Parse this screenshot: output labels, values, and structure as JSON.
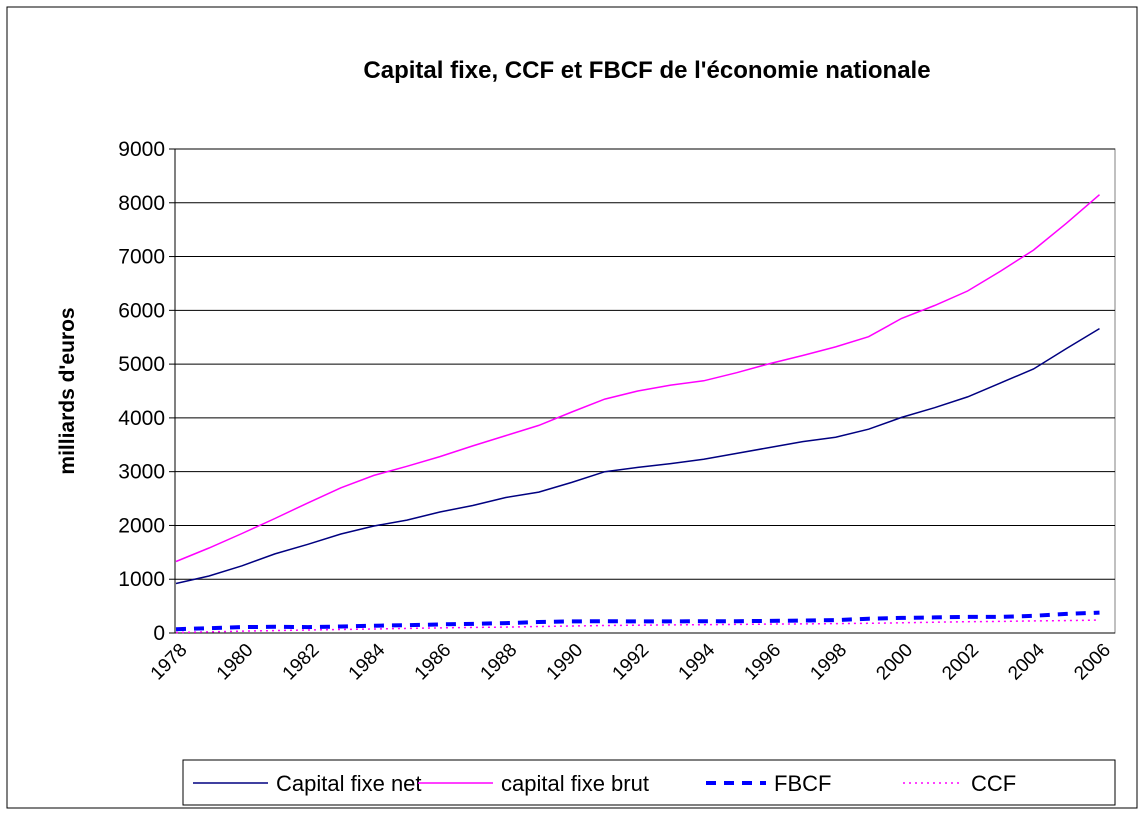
{
  "chart_data": {
    "type": "line",
    "title": "Capital fixe, CCF et FBCF de l'économie nationale",
    "y_label": "milliards d'euros",
    "categories": [
      "1978",
      null,
      "1980",
      null,
      "1982",
      null,
      "1984",
      null,
      "1986",
      null,
      "1988",
      null,
      "1990",
      null,
      "1992",
      null,
      "1994",
      null,
      "1996",
      null,
      "1998",
      null,
      "2000",
      null,
      "2002",
      null,
      "2004",
      null,
      "2006"
    ],
    "series": [
      {
        "name": "Capital fixe net",
        "color": "#000080",
        "style": "solid",
        "values": [
          920,
          1060,
          1250,
          1470,
          1650,
          1840,
          1990,
          2100,
          2250,
          2370,
          2520,
          2620,
          2800,
          3000,
          3080,
          3150,
          3230,
          3340,
          3450,
          3560,
          3640,
          3790,
          4010,
          4190,
          4390,
          4650,
          4910,
          5290,
          5660
        ]
      },
      {
        "name": "capital fixe brut",
        "color": "#ff00ff",
        "style": "solid",
        "values": [
          1330,
          1580,
          1850,
          2130,
          2420,
          2700,
          2930,
          3100,
          3280,
          3480,
          3670,
          3860,
          4110,
          4350,
          4500,
          4610,
          4690,
          4840,
          5010,
          5160,
          5320,
          5510,
          5850,
          6090,
          6360,
          6730,
          7120,
          7620,
          8150
        ]
      },
      {
        "name": "FBCF",
        "color": "#0000ff",
        "style": "dashed",
        "values": [
          70,
          90,
          110,
          115,
          110,
          120,
          135,
          145,
          160,
          170,
          185,
          205,
          215,
          220,
          215,
          215,
          220,
          220,
          225,
          230,
          240,
          265,
          280,
          290,
          300,
          300,
          320,
          355,
          380
        ]
      },
      {
        "name": "CCF",
        "color": "#ff00ff",
        "style": "dotted",
        "values": [
          10,
          20,
          35,
          45,
          55,
          65,
          75,
          85,
          95,
          105,
          110,
          120,
          130,
          140,
          145,
          150,
          155,
          160,
          165,
          170,
          175,
          180,
          190,
          200,
          210,
          215,
          225,
          230,
          240
        ]
      }
    ],
    "ylim": [
      0,
      9000
    ],
    "yticks": [
      0,
      1000,
      2000,
      3000,
      4000,
      5000,
      6000,
      7000,
      8000,
      9000
    ],
    "grid": true,
    "legend": "bottom"
  }
}
